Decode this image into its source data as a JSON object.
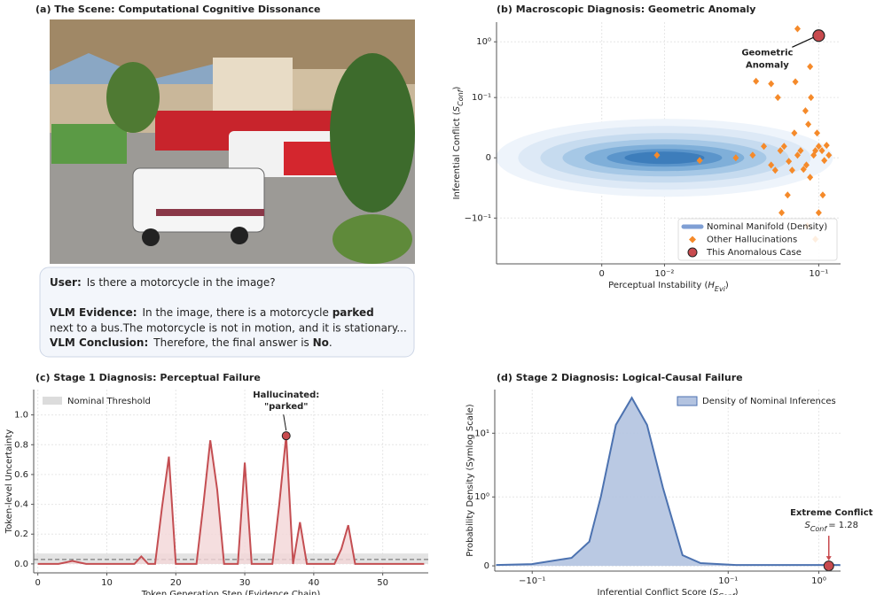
{
  "panel_a": {
    "title": "(a) The Scene: Computational Cognitive Dissonance",
    "dialog": {
      "user_label": "User:",
      "user_text": "Is there a motorcycle in the image?",
      "evidence_label": "VLM Evidence:",
      "evidence_text": [
        "In the image, there is a motorcycle ",
        "parked",
        " next to a bus.The motorcycle is not in motion, and it is stationary..."
      ],
      "conclusion_label": "VLM Conclusion:",
      "conclusion_text": [
        "Therefore, the final answer is ",
        "No",
        "."
      ]
    }
  },
  "chart_data": [
    {
      "type": "scatter",
      "title": "(b) Macroscopic Diagnosis: Geometric Anomaly",
      "xlabel": [
        "Perceptual Instability (",
        "H",
        "Evi",
        ")"
      ],
      "ylabel": [
        "Inferential Conflict (",
        "S",
        "Conf",
        ")"
      ],
      "xscale": "symlog",
      "yscale": "symlog",
      "xlim": [
        -0.022,
        0.13
      ],
      "ylim": [
        -0.67,
        2.2
      ],
      "xticks": [
        0,
        {
          "value": 0.01,
          "label": "10⁻²"
        },
        {
          "value": 0.1,
          "label": "10⁻¹"
        }
      ],
      "yticks": [
        {
          "value": -0.1,
          "label": "−10⁻¹"
        },
        0,
        {
          "value": 0.1,
          "label": "10⁻¹"
        },
        {
          "value": 1,
          "label": "10⁰"
        }
      ],
      "grid": true,
      "legend": "lower right",
      "series": [
        {
          "name": "Nominal Manifold (Density)",
          "color": "#7f9fd4",
          "kind": "density"
        },
        {
          "name": "Other Hallucinations",
          "color": "#f58a2a",
          "marker": "diamond",
          "x": [
            0.0084,
            0.0195,
            0.034,
            0.043,
            0.055,
            0.062,
            0.069,
            0.077,
            0.086,
            0.096,
            0.107,
            0.113,
            0.05,
            0.058,
            0.065,
            0.072,
            0.08,
            0.09,
            0.1,
            0.083,
            0.094,
            0.104,
            0.074,
            0.088,
            0.098,
            0.068,
            0.105,
            0.085,
            0.06,
            0.091,
            0.075,
            0.09,
            0.077,
            0.045,
            0.055,
            0.063,
            0.087,
            0.096,
            0.1,
            0.11
          ],
          "y": [
            0.0011,
            -0.0011,
            0,
            0.0011,
            -0.0033,
            0.0033,
            -0.0015,
            0.0011,
            -0.0033,
            0.0033,
            -0.0011,
            0.0011,
            0.0058,
            -0.0064,
            0.0058,
            -0.0064,
            0.0033,
            -0.0117,
            0.0058,
            -0.0058,
            0.0011,
            0.0033,
            0.0168,
            0.028,
            0.0168,
            -0.034,
            -0.034,
            0.055,
            0.1,
            0.1,
            0.196,
            0.366,
            1.69,
            0.2,
            0.18,
            -0.079,
            -0.14,
            -0.245,
            -0.079,
            0.0064
          ]
        },
        {
          "name": "This Anomalous Case",
          "color": "#c84a4e",
          "marker": "circle",
          "x": [
            0.1
          ],
          "y": [
            1.28
          ]
        }
      ],
      "annotation": {
        "text": [
          "Geometric",
          "Anomaly"
        ],
        "color": "#c84a4e"
      }
    },
    {
      "type": "line",
      "title": "(c) Stage 1 Diagnosis: Perceptual Failure",
      "xlabel": [
        "Token Generation Step (Evidence Chain)"
      ],
      "ylabel": [
        "Token-level Uncertainty"
      ],
      "xlim": [
        -0.6,
        56.6
      ],
      "ylim": [
        -0.06,
        1.17
      ],
      "xticks": [
        0,
        10,
        20,
        30,
        40,
        50
      ],
      "yticks": [
        {
          "value": 0,
          "label": "0.0"
        },
        {
          "value": 0.2,
          "label": "0.2"
        },
        {
          "value": 0.4,
          "label": "0.4"
        },
        {
          "value": 0.6,
          "label": "0.6"
        },
        {
          "value": 0.8,
          "label": "0.8"
        },
        {
          "value": 1,
          "label": "1.0"
        }
      ],
      "grid": true,
      "legend": "upper left",
      "x": [
        0,
        1,
        2,
        3,
        4,
        5,
        6,
        7,
        8,
        9,
        10,
        11,
        12,
        13,
        14,
        15,
        16,
        17,
        18,
        19,
        20,
        21,
        22,
        23,
        24,
        25,
        26,
        27,
        28,
        29,
        30,
        31,
        32,
        33,
        34,
        35,
        36,
        37,
        38,
        39,
        40,
        41,
        42,
        43,
        44,
        45,
        46,
        47,
        48,
        49,
        50,
        51,
        52,
        53,
        54,
        55,
        56
      ],
      "series": [
        {
          "color": "#c44e52",
          "fill": "#f2d6d7",
          "values": [
            0,
            0,
            0,
            0,
            0.01,
            0.02,
            0.01,
            0,
            0,
            0,
            0,
            0,
            0,
            0,
            0,
            0.05,
            0,
            0,
            0.38,
            0.72,
            0,
            0,
            0,
            0,
            0.4,
            0.83,
            0.5,
            0,
            0,
            0,
            0.68,
            0,
            0,
            0,
            0,
            0.4,
            0.86,
            0,
            0.28,
            0,
            0,
            0,
            0,
            0,
            0.1,
            0.26,
            0,
            0,
            0,
            0,
            0,
            0,
            0,
            0,
            0,
            0,
            0
          ]
        }
      ],
      "threshold": {
        "name": "Nominal Threshold",
        "value": 0.03,
        "band": [
          0,
          0.07
        ],
        "color": "#dcdcdc"
      },
      "annotation": {
        "text": [
          "Hallucinated:",
          "\"parked\""
        ],
        "index": 36,
        "color": "#c84a4e"
      }
    },
    {
      "type": "area",
      "title": "(d) Stage 2 Diagnosis: Logical-Causal Failure",
      "xlabel": [
        "Inferential Conflict Score (",
        "S",
        "Conf",
        ")"
      ],
      "ylabel": [
        "Probability Density (Symlog Scale)"
      ],
      "xscale": "symlog",
      "yscale": "symlog",
      "xlim": [
        -0.265,
        1.71
      ],
      "ylim": [
        -0.02,
        46
      ],
      "xticks": [
        {
          "value": -0.1,
          "label": "−10⁻¹"
        },
        {
          "value": 0.1,
          "label": "10⁻¹"
        },
        {
          "value": 1,
          "label": "10⁰"
        }
      ],
      "yticks": [
        0,
        {
          "value": 1,
          "label": "10⁰"
        },
        {
          "value": 10,
          "label": "10¹"
        }
      ],
      "grid": true,
      "legend": "upper right",
      "x": [
        -0.256,
        -0.101,
        -0.032,
        -0.0172,
        -0.0105,
        -0.0042,
        0.0004,
        0.0051,
        0.0123,
        0.026,
        0.046,
        0.123,
        1.7
      ],
      "series": [
        {
          "name": "Density of Nominal Inferences",
          "color": "#4c72b0",
          "fill": "#b3c3e0",
          "values": [
            0.003,
            0.0064,
            0.032,
            0.132,
            1.01,
            13.4,
            34.5,
            13.4,
            1.41,
            0.045,
            0.0099,
            0.003,
            0.003
          ]
        }
      ],
      "marker": {
        "x": 1.28,
        "y": 0,
        "color": "#c84a4e"
      },
      "annotation": {
        "text": "Extreme Conflict",
        "label": [
          "S",
          "Conf",
          "= 1.28"
        ],
        "color": "#c84a4e"
      }
    }
  ]
}
